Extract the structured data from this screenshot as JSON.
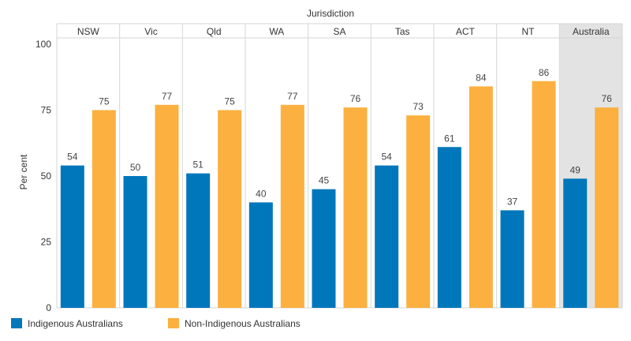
{
  "chart_data": {
    "type": "bar",
    "title": "",
    "xlabel": "Jurisdiction",
    "ylabel": "Per cent",
    "ylim": [
      0,
      100
    ],
    "yticks": [
      0,
      25,
      50,
      75,
      100
    ],
    "categories": [
      "NSW",
      "Vic",
      "Qld",
      "WA",
      "SA",
      "Tas",
      "ACT",
      "NT",
      "Australia"
    ],
    "highlight_category": "Australia",
    "series": [
      {
        "name": "Indigenous Australians",
        "color": "#0077BB",
        "values": [
          54,
          50,
          51,
          40,
          45,
          54,
          61,
          37,
          49
        ]
      },
      {
        "name": "Non-Indigenous Australians",
        "color": "#FBB040",
        "values": [
          75,
          77,
          75,
          77,
          76,
          73,
          84,
          86,
          76
        ]
      }
    ],
    "colors": {
      "highlight_bg": "#e3e3e3",
      "grid": "#d6d6d6"
    }
  }
}
